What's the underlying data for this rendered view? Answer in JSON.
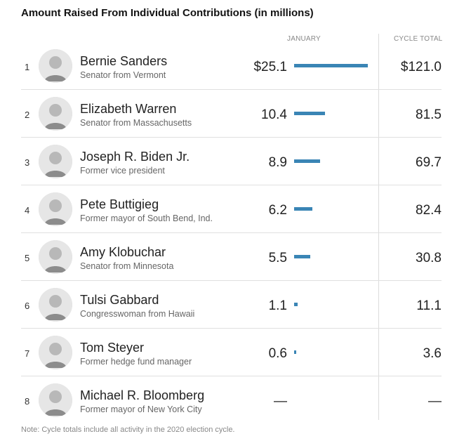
{
  "title": "Amount Raised From Individual Contributions (in millions)",
  "columns": {
    "january": "JANUARY",
    "cycle_total": "CYCLE TOTAL"
  },
  "note": "Note: Cycle totals include all activity in the 2020 election cycle.",
  "colors": {
    "bar": "#3a85b5",
    "avatar_bg": "#d9d9d9"
  },
  "chart_data": {
    "type": "table",
    "title": "Amount Raised From Individual Contributions (in millions)",
    "bar_max": 25.1,
    "rows": [
      {
        "rank": "1",
        "name": "Bernie Sanders",
        "description": "Senator from Vermont",
        "january_label": "$25.1",
        "january": 25.1,
        "total_label": "$121.0",
        "total": 121.0
      },
      {
        "rank": "2",
        "name": "Elizabeth Warren",
        "description": "Senator from Massachusetts",
        "january_label": "10.4",
        "january": 10.4,
        "total_label": "81.5",
        "total": 81.5
      },
      {
        "rank": "3",
        "name": "Joseph R. Biden Jr.",
        "description": "Former vice president",
        "january_label": "8.9",
        "january": 8.9,
        "total_label": "69.7",
        "total": 69.7
      },
      {
        "rank": "4",
        "name": "Pete Buttigieg",
        "description": "Former mayor of South Bend, Ind.",
        "january_label": "6.2",
        "january": 6.2,
        "total_label": "82.4",
        "total": 82.4
      },
      {
        "rank": "5",
        "name": "Amy Klobuchar",
        "description": "Senator from Minnesota",
        "january_label": "5.5",
        "january": 5.5,
        "total_label": "30.8",
        "total": 30.8
      },
      {
        "rank": "6",
        "name": "Tulsi Gabbard",
        "description": "Congresswoman from Hawaii",
        "january_label": "1.1",
        "january": 1.1,
        "total_label": "11.1",
        "total": 11.1
      },
      {
        "rank": "7",
        "name": "Tom Steyer",
        "description": "Former hedge fund manager",
        "january_label": "0.6",
        "january": 0.6,
        "total_label": "3.6",
        "total": 3.6
      },
      {
        "rank": "8",
        "name": "Michael R. Bloomberg",
        "description": "Former mayor of New York City",
        "january_label": "—",
        "january": null,
        "total_label": "—",
        "total": null
      }
    ]
  }
}
